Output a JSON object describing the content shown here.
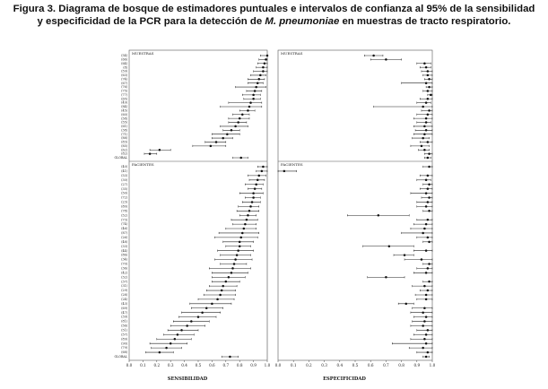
{
  "figure": {
    "caption_line1": "Figura 3.  Diagrama de bosque de estimadores puntuales e intervalos de confianza al 95% de la sensibilidad",
    "caption_line2a": "y especificidad de la  PCR para la detección de ",
    "caption_line2_italic": "M. pneumoniae",
    "caption_line2b": " en muestras de tracto respiratorio."
  },
  "chart_data": [
    {
      "type": "forest",
      "panel": "Sensibilidad - Muestras",
      "panel_label": "MUESTRAS",
      "xlabel": "SENSIBILIDAD",
      "xlim": [
        0.0,
        1.0
      ],
      "xticks": [
        "0.0",
        "0.1",
        "0.2",
        "0.3",
        "0.4",
        "0.5",
        "0.6",
        "0.7",
        "0.8",
        "0.9",
        "1.0"
      ],
      "study_labels": [
        "(54)",
        "(66)",
        "(64)",
        "(8)",
        "(59)",
        "(63)",
        "(74)",
        "(67)",
        "(76)",
        "(75)",
        "(77)",
        "(65)",
        "(49)",
        "(84)",
        "(45)",
        "(60)",
        "(58)",
        "(55)",
        "(61)",
        "(38)",
        "(71)",
        "(88)",
        "(83)",
        "(85)",
        "(62)",
        "(82)",
        "GLOBAL"
      ],
      "estimates": [
        1.0,
        0.99,
        0.98,
        0.97,
        0.97,
        0.95,
        0.94,
        0.93,
        0.92,
        0.91,
        0.9,
        0.9,
        0.88,
        0.87,
        0.86,
        0.82,
        0.8,
        0.79,
        0.77,
        0.74,
        0.71,
        0.68,
        0.63,
        0.59,
        0.22,
        0.15,
        0.81
      ],
      "ci_lower": [
        0.95,
        0.94,
        0.93,
        0.92,
        0.9,
        0.88,
        0.86,
        0.86,
        0.77,
        0.85,
        0.82,
        0.83,
        0.72,
        0.66,
        0.8,
        0.75,
        0.72,
        0.72,
        0.66,
        0.68,
        0.6,
        0.6,
        0.55,
        0.46,
        0.15,
        0.11,
        0.75
      ],
      "ci_upper": [
        1.0,
        1.0,
        1.0,
        1.0,
        1.0,
        0.99,
        0.98,
        0.97,
        0.99,
        0.96,
        0.95,
        0.95,
        0.96,
        0.96,
        0.91,
        0.87,
        0.87,
        0.85,
        0.86,
        0.8,
        0.8,
        0.75,
        0.7,
        0.7,
        0.3,
        0.2,
        0.86
      ]
    },
    {
      "type": "forest",
      "panel": "Sensibilidad - Pacientes",
      "panel_label": "PACIENTES",
      "xlabel": "SENSIBILIDAD",
      "xlim": [
        0.0,
        1.0
      ],
      "xticks": [
        "0.0",
        "0.1",
        "0.2",
        "0.3",
        "0.4",
        "0.5",
        "0.6",
        "0.7",
        "0.8",
        "0.9",
        "1.0"
      ],
      "study_labels": [
        "(40)",
        "(41)",
        "(53)",
        "(30)",
        "(27)",
        "(35)",
        "(50)",
        "(72)",
        "(23)",
        "(80)",
        "(78)",
        "(52)",
        "(73)",
        "(74)",
        "(46)",
        "(87)",
        "(26)",
        "(48)",
        "(33)",
        "(44)",
        "(86)",
        "(34)",
        "(70)",
        "(36)",
        "(42)",
        "(32)",
        "(37)",
        "(31)",
        "(29)",
        "(28)",
        "(24)",
        "(43)",
        "(69)",
        "(47)",
        "(39)",
        "(81)",
        "(56)",
        "(51)",
        "(57)",
        "(89)",
        "(90)",
        "(79)",
        "(68)",
        "GLOBAL"
      ],
      "estimates": [
        0.97,
        0.96,
        0.94,
        0.93,
        0.92,
        0.91,
        0.9,
        0.9,
        0.89,
        0.88,
        0.87,
        0.86,
        0.85,
        0.84,
        0.83,
        0.82,
        0.81,
        0.8,
        0.8,
        0.79,
        0.78,
        0.77,
        0.76,
        0.75,
        0.74,
        0.72,
        0.7,
        0.68,
        0.67,
        0.66,
        0.64,
        0.6,
        0.56,
        0.53,
        0.5,
        0.45,
        0.42,
        0.38,
        0.35,
        0.33,
        0.3,
        0.27,
        0.22,
        0.73
      ],
      "ci_lower": [
        0.93,
        0.92,
        0.86,
        0.87,
        0.84,
        0.86,
        0.8,
        0.84,
        0.82,
        0.79,
        0.78,
        0.8,
        0.74,
        0.75,
        0.7,
        0.65,
        0.62,
        0.68,
        0.7,
        0.64,
        0.66,
        0.62,
        0.66,
        0.58,
        0.6,
        0.6,
        0.6,
        0.58,
        0.56,
        0.54,
        0.5,
        0.44,
        0.45,
        0.38,
        0.36,
        0.32,
        0.3,
        0.28,
        0.25,
        0.2,
        0.15,
        0.16,
        0.12,
        0.67
      ],
      "ci_upper": [
        1.0,
        1.0,
        0.99,
        0.98,
        0.97,
        0.96,
        0.97,
        0.95,
        0.95,
        0.94,
        0.94,
        0.92,
        0.93,
        0.92,
        0.92,
        0.94,
        0.93,
        0.9,
        0.88,
        0.9,
        0.88,
        0.89,
        0.85,
        0.88,
        0.86,
        0.84,
        0.8,
        0.78,
        0.77,
        0.77,
        0.76,
        0.74,
        0.68,
        0.66,
        0.63,
        0.58,
        0.55,
        0.5,
        0.47,
        0.45,
        0.42,
        0.38,
        0.32,
        0.79
      ]
    },
    {
      "type": "forest",
      "panel": "Especificidad - Muestras",
      "panel_label": "MUESTRAS",
      "xlabel": "ESPECIFICIDAD",
      "xlim": [
        0.0,
        1.0
      ],
      "xticks": [
        "0.0",
        "0.1",
        "0.2",
        "0.3",
        "0.4",
        "0.5",
        "0.6",
        "0.7",
        "0.8",
        "0.9",
        "1.0"
      ],
      "estimates": [
        0.62,
        0.7,
        0.95,
        0.96,
        0.97,
        0.97,
        0.98,
        0.96,
        0.98,
        0.97,
        0.99,
        0.97,
        0.96,
        0.94,
        0.98,
        0.97,
        0.96,
        0.96,
        0.95,
        0.96,
        0.95,
        0.94,
        0.97,
        0.93,
        0.95,
        0.98,
        0.97
      ],
      "ci_lower": [
        0.56,
        0.6,
        0.9,
        0.92,
        0.93,
        0.94,
        0.95,
        0.8,
        0.96,
        0.94,
        0.97,
        0.92,
        0.9,
        0.62,
        0.93,
        0.9,
        0.88,
        0.9,
        0.88,
        0.89,
        0.88,
        0.87,
        0.92,
        0.86,
        0.91,
        0.95,
        0.95
      ],
      "ci_upper": [
        0.68,
        0.8,
        0.99,
        0.99,
        1.0,
        1.0,
        1.0,
        1.0,
        1.0,
        1.0,
        1.0,
        1.0,
        0.99,
        1.0,
        1.0,
        1.0,
        1.0,
        0.99,
        1.0,
        1.0,
        1.0,
        0.98,
        1.0,
        0.98,
        0.98,
        1.0,
        0.99
      ]
    },
    {
      "type": "forest",
      "panel": "Especificidad - Pacientes",
      "panel_label": "PACIENTES",
      "xlabel": "ESPECIFICIDAD",
      "xlim": [
        0.0,
        1.0
      ],
      "xticks": [
        "0.0",
        "0.1",
        "0.2",
        "0.3",
        "0.4",
        "0.5",
        "0.6",
        "0.7",
        "0.8",
        "0.9",
        "1.0"
      ],
      "estimates": [
        0.98,
        0.04,
        0.97,
        0.96,
        0.98,
        0.97,
        0.96,
        0.98,
        0.97,
        0.96,
        0.98,
        0.65,
        0.97,
        0.96,
        0.95,
        0.94,
        0.97,
        0.98,
        0.72,
        0.96,
        0.82,
        0.93,
        0.98,
        0.97,
        0.96,
        0.7,
        0.98,
        0.95,
        0.97,
        0.96,
        0.96,
        0.83,
        0.95,
        0.94,
        0.96,
        0.95,
        0.94,
        0.97,
        0.96,
        0.95,
        0.96,
        0.94,
        0.97,
        0.96
      ],
      "ci_lower": [
        0.94,
        0.0,
        0.92,
        0.9,
        0.94,
        0.92,
        0.86,
        0.93,
        0.9,
        0.9,
        0.94,
        0.45,
        0.9,
        0.88,
        0.86,
        0.8,
        0.9,
        0.94,
        0.55,
        0.88,
        0.75,
        0.82,
        0.94,
        0.9,
        0.88,
        0.58,
        0.94,
        0.87,
        0.92,
        0.89,
        0.9,
        0.78,
        0.87,
        0.86,
        0.88,
        0.87,
        0.86,
        0.9,
        0.88,
        0.86,
        0.74,
        0.85,
        0.9,
        0.94
      ],
      "ci_upper": [
        1.0,
        0.12,
        1.0,
        0.99,
        1.0,
        1.0,
        1.0,
        1.0,
        1.0,
        1.0,
        1.0,
        0.85,
        1.0,
        1.0,
        1.0,
        1.0,
        1.0,
        1.0,
        0.88,
        1.0,
        0.88,
        1.0,
        1.0,
        1.0,
        1.0,
        0.82,
        1.0,
        1.0,
        1.0,
        1.0,
        1.0,
        0.88,
        1.0,
        1.0,
        1.0,
        1.0,
        1.0,
        1.0,
        1.0,
        1.0,
        1.0,
        1.0,
        1.0,
        0.98
      ]
    }
  ]
}
